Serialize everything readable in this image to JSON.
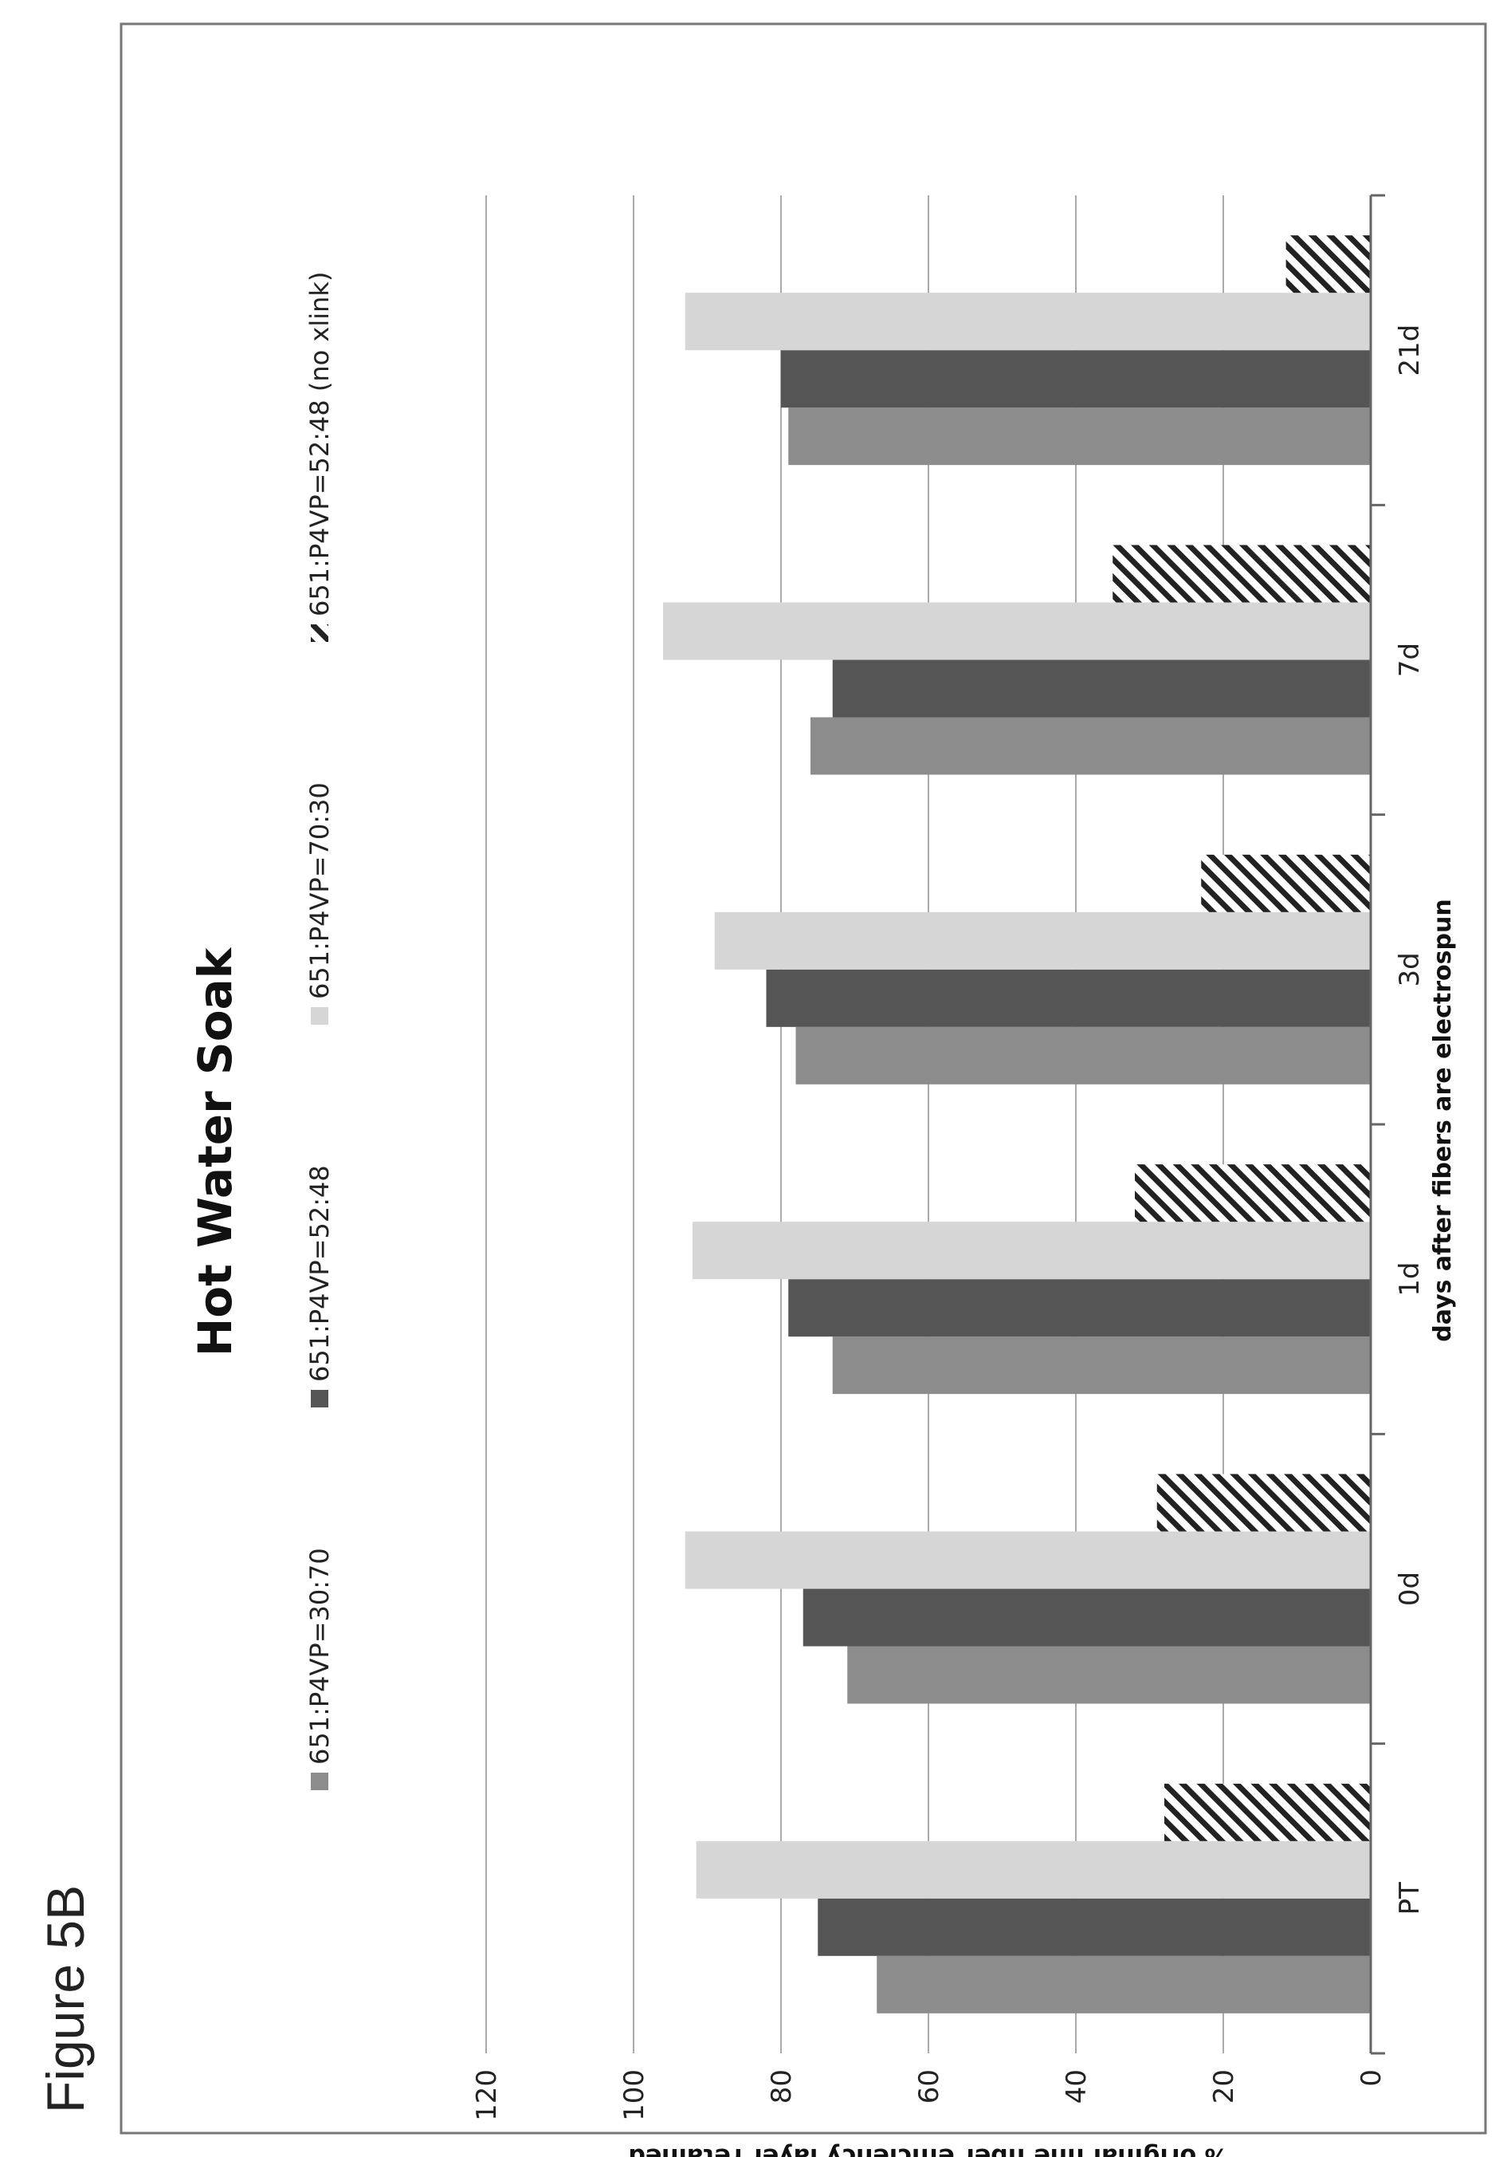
{
  "figure_label": "Figure 5B",
  "chart_data": {
    "type": "bar",
    "orientation": "rotated-90",
    "title": "Hot Water Soak",
    "xlabel": "days after fibers are electrospun",
    "ylabel": "% original fine fiber efficiency layer retained",
    "categories": [
      "PT",
      "0d",
      "1d",
      "3d",
      "7d",
      "21d"
    ],
    "yticks": [
      "0",
      "20",
      "40",
      "60",
      "80",
      "100",
      "120"
    ],
    "ylim": [
      0,
      120
    ],
    "grid": true,
    "legend_position": "top",
    "series": [
      {
        "name": "651:P4VP=30:70",
        "values": [
          67,
          71,
          73,
          78,
          76,
          79
        ],
        "color": "#8c8c8c",
        "pattern": "solid"
      },
      {
        "name": "651:P4VP=52:48",
        "values": [
          75,
          77,
          79,
          82,
          73,
          80
        ],
        "color": "#555555",
        "pattern": "solid"
      },
      {
        "name": "651:P4VP=70:30",
        "values": [
          91.5,
          93,
          92,
          89,
          96,
          93
        ],
        "color": "#d6d6d6",
        "pattern": "solid"
      },
      {
        "name": "651:P4VP=52:48 (no xlink)",
        "values": [
          28,
          29,
          32,
          23,
          35,
          11.5
        ],
        "color": "#222222",
        "pattern": "hatched"
      }
    ]
  }
}
